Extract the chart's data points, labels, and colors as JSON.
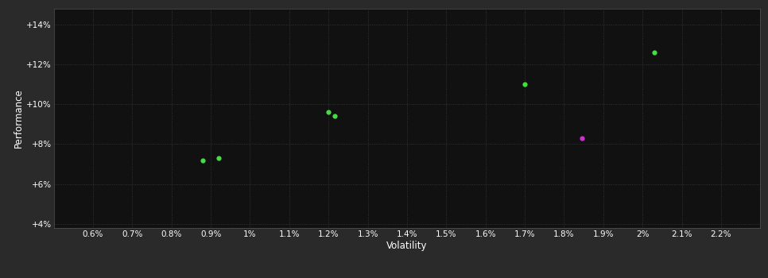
{
  "background_color": "#2a2a2a",
  "plot_bg_color": "#111111",
  "grid_color": "#404040",
  "text_color": "#ffffff",
  "xlabel": "Volatility",
  "ylabel": "Performance",
  "xlim": [
    0.005,
    0.023
  ],
  "ylim": [
    0.038,
    0.148
  ],
  "xticks": [
    0.006,
    0.007,
    0.008,
    0.009,
    0.01,
    0.011,
    0.012,
    0.013,
    0.014,
    0.015,
    0.016,
    0.017,
    0.018,
    0.019,
    0.02,
    0.021,
    0.022
  ],
  "xtick_labels": [
    "0.6%",
    "0.7%",
    "0.8%",
    "0.9%",
    "1%",
    "1.1%",
    "1.2%",
    "1.3%",
    "1.4%",
    "1.5%",
    "1.6%",
    "1.7%",
    "1.8%",
    "1.9%",
    "2%",
    "2.1%",
    "2.2%"
  ],
  "yticks": [
    0.04,
    0.06,
    0.08,
    0.1,
    0.12,
    0.14
  ],
  "ytick_labels": [
    "+4%",
    "+6%",
    "+8%",
    "+10%",
    "+12%",
    "+14%"
  ],
  "green_points": [
    [
      0.0088,
      0.072
    ],
    [
      0.0092,
      0.073
    ],
    [
      0.012,
      0.096
    ],
    [
      0.01215,
      0.094
    ],
    [
      0.017,
      0.11
    ],
    [
      0.0203,
      0.126
    ]
  ],
  "magenta_points": [
    [
      0.01845,
      0.083
    ]
  ],
  "green_color": "#44dd44",
  "magenta_color": "#cc33cc",
  "marker_size": 20,
  "marker_size_large": 28
}
